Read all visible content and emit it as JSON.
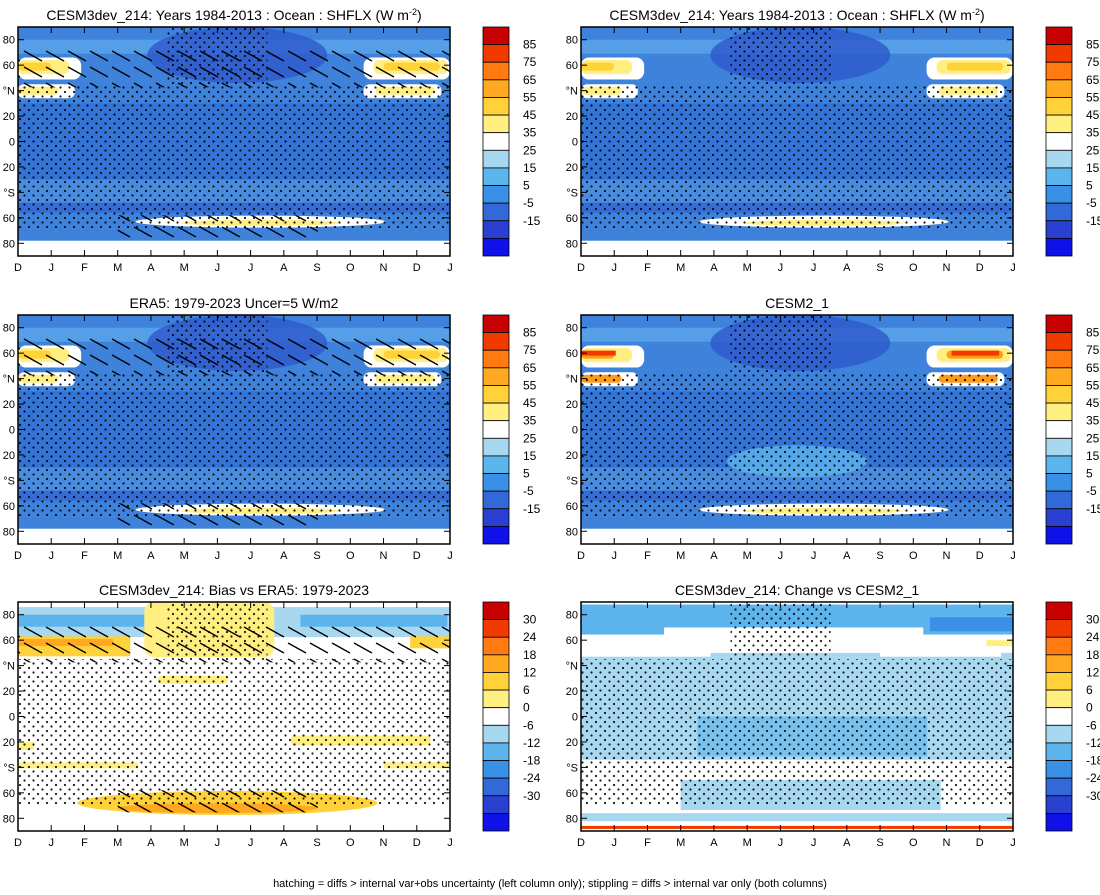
{
  "caption": "hatching = diffs > internal var+obs uncertainty (left column only); stippling = diffs > internal var only (both columns)",
  "months": [
    "D",
    "J",
    "F",
    "M",
    "A",
    "M",
    "J",
    "J",
    "A",
    "S",
    "O",
    "N",
    "D",
    "J"
  ],
  "lat_ticks": [
    "80",
    "60",
    "°N",
    "20",
    "0",
    "20",
    "°S",
    "60",
    "80"
  ],
  "lat_values": [
    80,
    60,
    40,
    20,
    0,
    -20,
    -40,
    -60,
    -80
  ],
  "chart_data": [
    {
      "type": "heatmap",
      "panel": "model-1984-2013-left",
      "title": "CESM3dev_214: Years 1984-2013 : Ocean : SHFLX (W m",
      "title_sup": "-2",
      "title_tail": ")",
      "xlabel": "",
      "ylabel": "",
      "ylim": [
        -90,
        90
      ],
      "colorbar": [
        85,
        75,
        65,
        55,
        45,
        35,
        25,
        15,
        5,
        -5,
        -15
      ],
      "hatching": true,
      "stippling": true
    },
    {
      "type": "heatmap",
      "panel": "model-1984-2013-right",
      "title": "CESM3dev_214: Years 1984-2013 : Ocean : SHFLX (W m",
      "title_sup": "-2",
      "title_tail": ")",
      "xlabel": "",
      "ylabel": "",
      "ylim": [
        -90,
        90
      ],
      "colorbar": [
        85,
        75,
        65,
        55,
        45,
        35,
        25,
        15,
        5,
        -5,
        -15
      ],
      "hatching": false,
      "stippling": true
    },
    {
      "type": "heatmap",
      "panel": "era5",
      "title": "ERA5: 1979-2023 Uncer=5 W/m2",
      "title_sup": "",
      "title_tail": "",
      "xlabel": "",
      "ylabel": "",
      "ylim": [
        -90,
        90
      ],
      "colorbar": [
        85,
        75,
        65,
        55,
        45,
        35,
        25,
        15,
        5,
        -5,
        -15
      ],
      "hatching": true,
      "stippling": true
    },
    {
      "type": "heatmap",
      "panel": "cesm2",
      "title": "CESM2_1",
      "title_sup": "",
      "title_tail": "",
      "xlabel": "",
      "ylabel": "",
      "ylim": [
        -90,
        90
      ],
      "colorbar": [
        85,
        75,
        65,
        55,
        45,
        35,
        25,
        15,
        5,
        -5,
        -15
      ],
      "hatching": false,
      "stippling": true
    },
    {
      "type": "heatmap",
      "panel": "bias-vs-era5",
      "title": "CESM3dev_214: Bias vs ERA5: 1979-2023",
      "title_sup": "",
      "title_tail": "",
      "xlabel": "",
      "ylabel": "",
      "ylim": [
        -90,
        90
      ],
      "colorbar": [
        30,
        24,
        18,
        12,
        6,
        0,
        -6,
        -12,
        -18,
        -24,
        -30
      ],
      "hatching": true,
      "stippling": true
    },
    {
      "type": "heatmap",
      "panel": "change-vs-cesm2",
      "title": "CESM3dev_214: Change vs CESM2_1",
      "title_sup": "",
      "title_tail": "",
      "xlabel": "",
      "ylabel": "",
      "ylim": [
        -90,
        90
      ],
      "colorbar": [
        30,
        24,
        18,
        12,
        6,
        0,
        -6,
        -12,
        -18,
        -24,
        -30
      ],
      "hatching": false,
      "stippling": true
    }
  ],
  "colors": {
    "abs_scale": [
      "#c80000",
      "#f03a00",
      "#ff7a10",
      "#ffa820",
      "#ffd23a",
      "#ffee80",
      "#ffffff",
      "#a8d8f0",
      "#5cb4ec",
      "#3a8fe6",
      "#3368d8",
      "#2a40d0",
      "#1010e8"
    ],
    "diff_scale": [
      "#c80000",
      "#f03a00",
      "#ff7a10",
      "#ffa820",
      "#ffd23a",
      "#ffee80",
      "#ffffff",
      "#a8d8f0",
      "#5cb4ec",
      "#3a8fe6",
      "#3368d8",
      "#2a40d0",
      "#1010e8"
    ]
  }
}
